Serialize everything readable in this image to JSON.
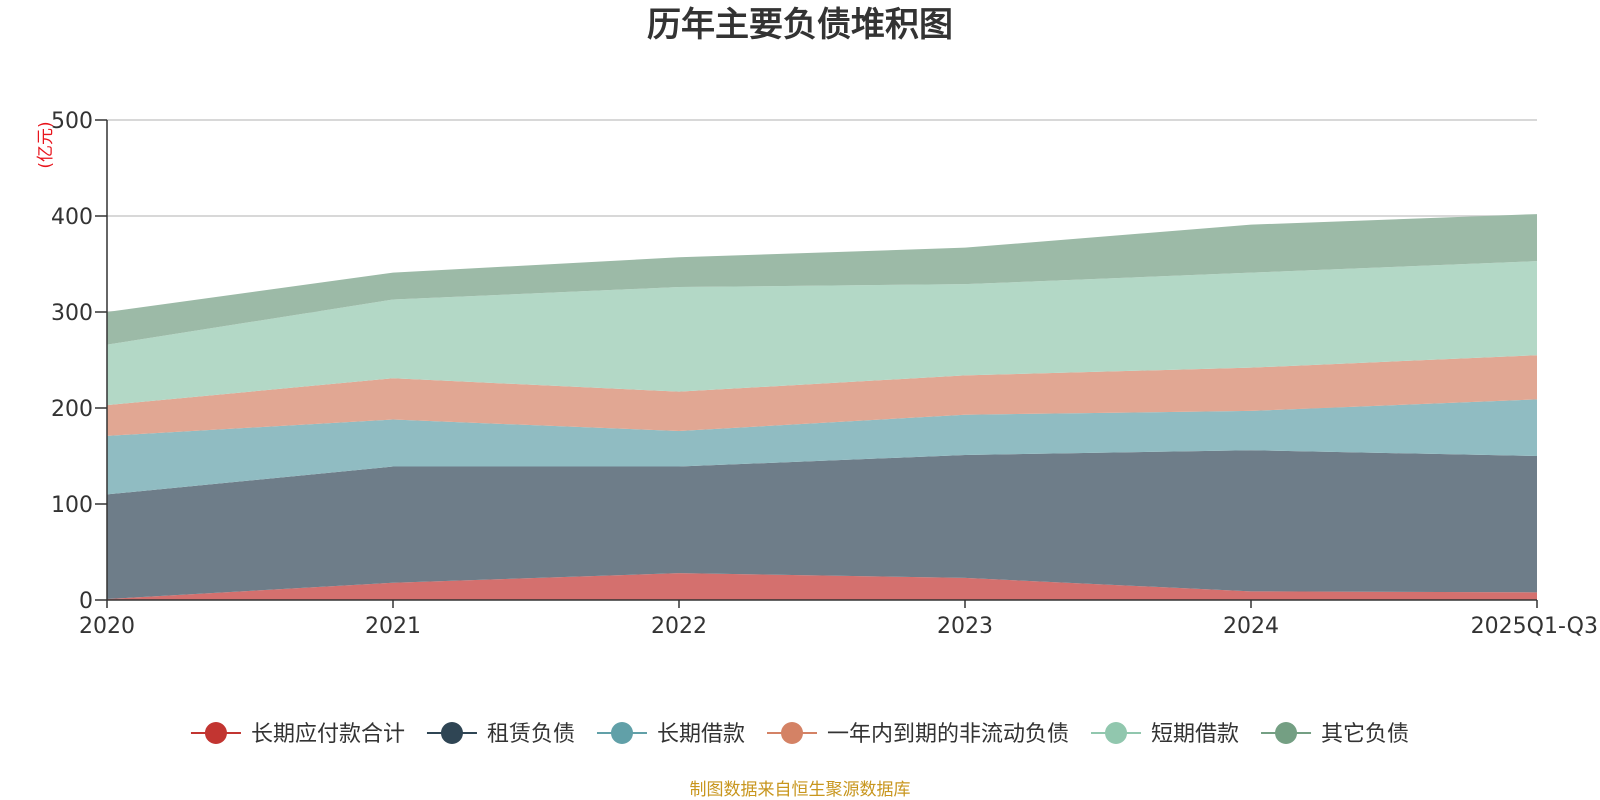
{
  "chart_data": {
    "type": "area",
    "stacked": true,
    "title": "历年主要负债堆积图",
    "y_unit": "(亿元)",
    "categories": [
      "2020",
      "2021",
      "2022",
      "2023",
      "2024",
      "2025Q1-Q3"
    ],
    "ylim": [
      0,
      500
    ],
    "yticks": [
      "0",
      "100",
      "200",
      "300",
      "400",
      "500"
    ],
    "grid": true,
    "legend_position": "bottom",
    "series": [
      {
        "name": "长期应付款合计",
        "color": "#c23531",
        "fill": "#d4706e",
        "values": [
          1,
          18,
          28,
          23,
          9,
          8
        ]
      },
      {
        "name": "租赁负债",
        "color": "#2f4554",
        "fill": "#6e7d89",
        "values": [
          109,
          121,
          111,
          128,
          147,
          142
        ]
      },
      {
        "name": "长期借款",
        "color": "#61a0a8",
        "fill": "#90bcc2",
        "values": [
          61,
          49,
          37,
          42,
          41,
          59
        ]
      },
      {
        "name": "一年内到期的非流动负债",
        "color": "#d48265",
        "fill": "#e1a793",
        "values": [
          32,
          43,
          41,
          41,
          45,
          46
        ]
      },
      {
        "name": "短期借款",
        "color": "#91c7ae",
        "fill": "#b3d8c6",
        "values": [
          63,
          82,
          109,
          95,
          99,
          98
        ]
      },
      {
        "name": "其它负债",
        "color": "#749f83",
        "fill": "#9cbaa7",
        "values": [
          34,
          28,
          31,
          38,
          50,
          49
        ]
      }
    ],
    "source": "制图数据来自恒生聚源数据库"
  }
}
